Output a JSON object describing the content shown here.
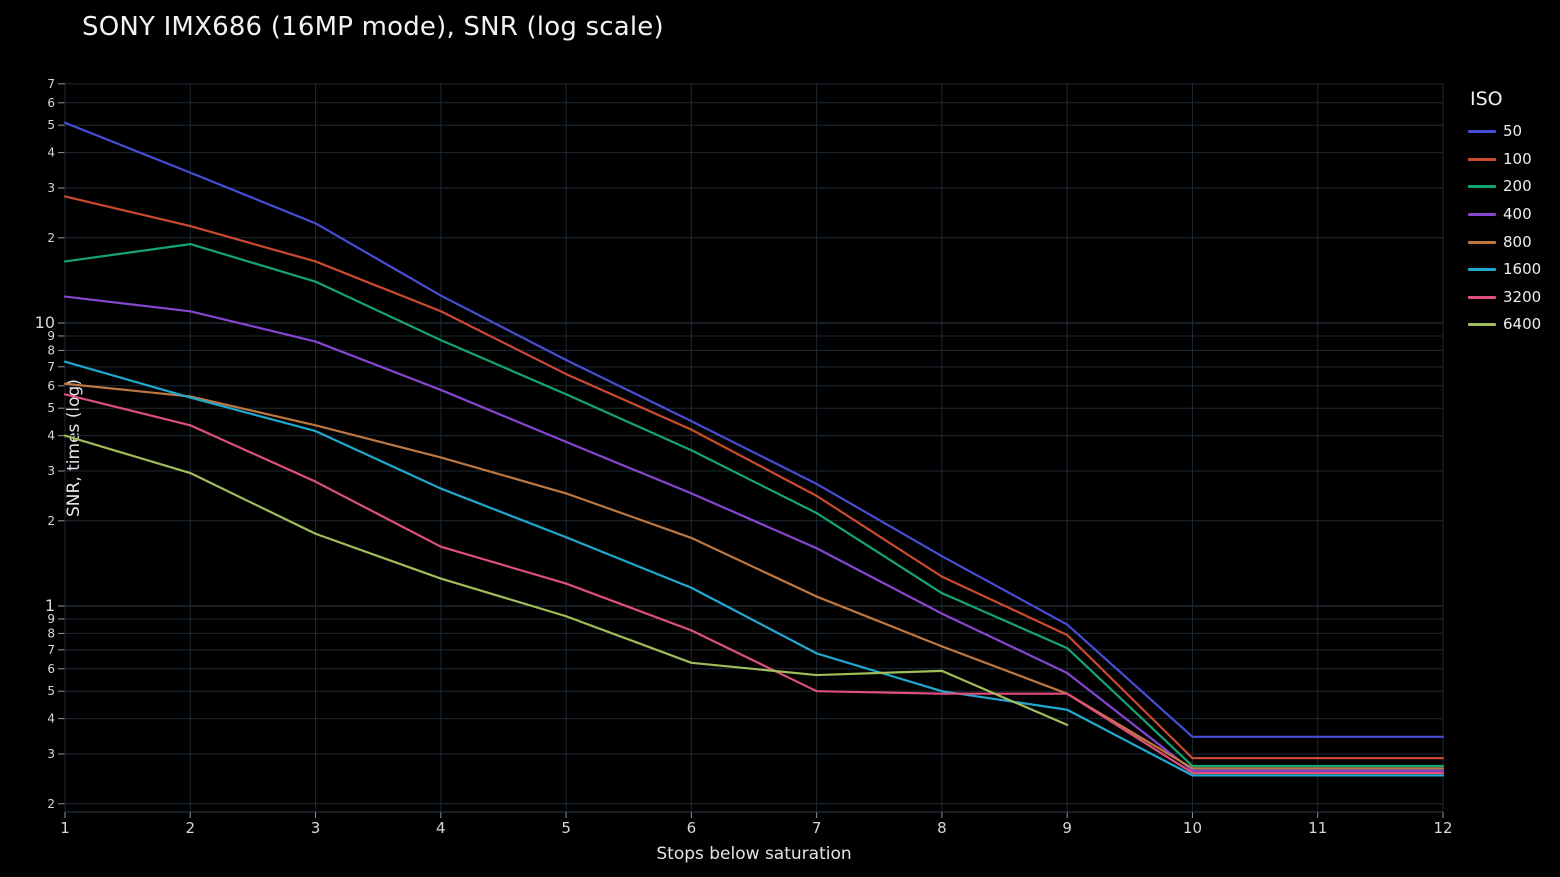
{
  "title": "SONY IMX686 (16MP mode), SNR (log scale)",
  "colors": {
    "background": "#000000",
    "grid_minor": "#1d2833",
    "grid_major": "#2e3d4d",
    "tick_text": "#d8d8d8",
    "title_text": "#f2f2f2"
  },
  "chart_data": {
    "type": "line",
    "title": "SONY IMX686 (16MP mode), SNR (log scale)",
    "xlabel": "Stops below saturation",
    "ylabel": "SNR, times (log)",
    "y_scale": "log",
    "xlim": [
      1,
      12
    ],
    "ylim": [
      0.19,
      70
    ],
    "grid": true,
    "legend_position": "right",
    "legend_title": "ISO",
    "x": [
      1,
      2,
      3,
      4,
      5,
      6,
      7,
      8,
      9,
      10,
      11,
      12
    ],
    "x_ticks": [
      "1",
      "2",
      "3",
      "4",
      "5",
      "6",
      "7",
      "8",
      "9",
      "10",
      "11",
      "12"
    ],
    "y_ticks": [
      {
        "v": 70,
        "label": "7"
      },
      {
        "v": 60,
        "label": "6"
      },
      {
        "v": 50,
        "label": "5"
      },
      {
        "v": 40,
        "label": "4"
      },
      {
        "v": 30,
        "label": "3"
      },
      {
        "v": 20,
        "label": "2"
      },
      {
        "v": 10,
        "label": "10",
        "major": true
      },
      {
        "v": 9,
        "label": "9"
      },
      {
        "v": 8,
        "label": "8"
      },
      {
        "v": 7,
        "label": "7"
      },
      {
        "v": 6,
        "label": "6"
      },
      {
        "v": 5,
        "label": "5"
      },
      {
        "v": 4,
        "label": "4"
      },
      {
        "v": 3,
        "label": "3"
      },
      {
        "v": 2,
        "label": "2"
      },
      {
        "v": 1,
        "label": "1",
        "major": true
      },
      {
        "v": 0.9,
        "label": "9"
      },
      {
        "v": 0.8,
        "label": "8"
      },
      {
        "v": 0.7,
        "label": "7"
      },
      {
        "v": 0.6,
        "label": "6"
      },
      {
        "v": 0.5,
        "label": "5"
      },
      {
        "v": 0.4,
        "label": "4"
      },
      {
        "v": 0.3,
        "label": "3"
      },
      {
        "v": 0.2,
        "label": "2"
      }
    ],
    "series": [
      {
        "name": "50",
        "color": "#474dd4",
        "values": [
          51,
          34,
          22.5,
          12.5,
          7.4,
          4.5,
          2.7,
          1.5,
          0.86,
          0.345,
          0.345,
          0.345
        ]
      },
      {
        "name": "100",
        "color": "#cc4a2f",
        "values": [
          28,
          22,
          16.5,
          11,
          6.6,
          4.2,
          2.45,
          1.27,
          0.79,
          0.29,
          0.29,
          0.29
        ]
      },
      {
        "name": "200",
        "color": "#16a572",
        "values": [
          16.5,
          19,
          14,
          8.7,
          5.6,
          3.55,
          2.13,
          1.11,
          0.71,
          0.272,
          0.272,
          0.272
        ]
      },
      {
        "name": "400",
        "color": "#8746cf",
        "values": [
          12.4,
          11,
          8.6,
          5.8,
          3.8,
          2.5,
          1.6,
          0.94,
          0.58,
          0.262,
          0.262,
          0.262
        ]
      },
      {
        "name": "800",
        "color": "#bd7841",
        "values": [
          6.1,
          5.5,
          4.35,
          3.35,
          2.5,
          1.74,
          1.08,
          0.72,
          0.49,
          0.267,
          0.267,
          0.267
        ]
      },
      {
        "name": "1600",
        "color": "#20a9cf",
        "values": [
          7.3,
          5.45,
          4.15,
          2.6,
          1.75,
          1.16,
          0.68,
          0.5,
          0.43,
          0.252,
          0.252,
          0.252
        ]
      },
      {
        "name": "3200",
        "color": "#df4f7d",
        "values": [
          5.6,
          4.35,
          2.75,
          1.62,
          1.2,
          0.82,
          0.5,
          0.49,
          0.49,
          0.257,
          0.257,
          0.257
        ]
      },
      {
        "name": "6400",
        "color": "#a2bc5c",
        "values": [
          4.0,
          2.95,
          1.8,
          1.25,
          0.92,
          0.63,
          0.57,
          0.59,
          0.38,
          null,
          null,
          null
        ]
      }
    ]
  }
}
